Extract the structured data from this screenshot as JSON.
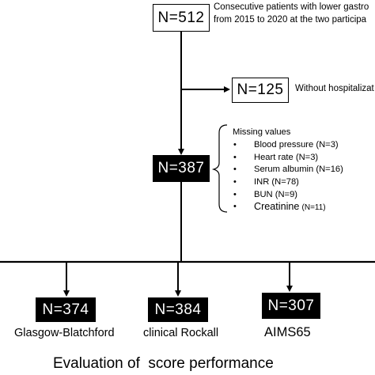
{
  "top": {
    "count": "N=512",
    "note_line1": "Consecutive patients with lower gastro",
    "note_line2_a": "from 2015 to 2020 at the two participa"
  },
  "excluded": {
    "count": "N=125",
    "label": "Without hospitalizat"
  },
  "missing": {
    "title": "Missing values",
    "items": [
      {
        "label": "Blood pressure",
        "count": "(N=3)"
      },
      {
        "label": "Heart rate",
        "count": "(N=3)"
      },
      {
        "label": "Serum albumin",
        "count": "(N=16)"
      },
      {
        "label": "INR",
        "count": "(N=78)"
      },
      {
        "label": "BUN",
        "count": "(N=9)"
      },
      {
        "label": "Creatinine",
        "count": "(N=11)"
      }
    ]
  },
  "middle": {
    "count": "N=387"
  },
  "scores": [
    {
      "count": "N=374",
      "label": "Glasgow-Blatchford"
    },
    {
      "count": "N=384",
      "label": "clinical Rockall"
    },
    {
      "count": "N=307",
      "label": "AIMS65"
    }
  ],
  "footer": {
    "label": "Evaluation of  score performance"
  }
}
